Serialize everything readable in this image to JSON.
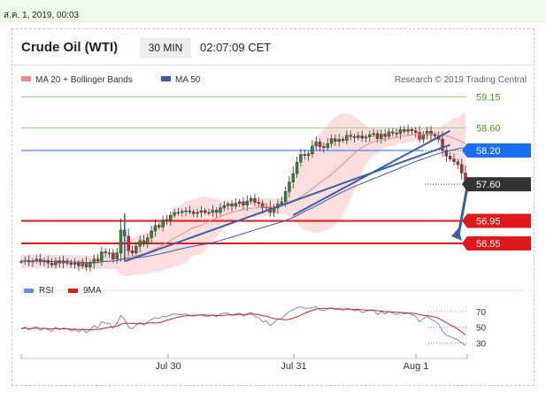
{
  "topbar": {
    "date": "ส.ค. 1, 2019, 00:03"
  },
  "header": {
    "title": "Crude Oil (WTI)",
    "interval": "30 MIN",
    "time": "02:07:09 CET"
  },
  "legend": {
    "ma20": "MA 20 + Bollinger Bands",
    "ma50": "MA 50",
    "credit": "Research © 2019 Trading Central"
  },
  "rsi_legend": {
    "rsi": "RSI",
    "ma9": "9MA"
  },
  "colors": {
    "ma20": "#ef8b8b",
    "band": "#fddede",
    "ma50": "#3d5c99",
    "trend": "#3a5ea6",
    "support": "#e0191c",
    "resistance": "#9fd58a",
    "level_text": "#4b9a1e",
    "current": "#333333",
    "pivot": "#1a6ff5",
    "bull": "#2f8a2f",
    "bear": "#cc2a2a",
    "rsi": "#6a8fd8",
    "rsi_ma": "#d42020"
  },
  "chart_data": [
    {
      "type": "line",
      "chart": "price",
      "x_ticks": [
        "Jul 30",
        "Jul 31",
        "Aug 1"
      ],
      "ylim": [
        56.0,
        59.3
      ],
      "levels": [
        {
          "value": 59.15,
          "label": "59.15",
          "style": "resistance"
        },
        {
          "value": 58.6,
          "label": "58.60",
          "style": "resistance"
        },
        {
          "value": 58.2,
          "label": "58.20",
          "style": "pivot"
        },
        {
          "value": 57.6,
          "label": "57.60",
          "style": "current"
        },
        {
          "value": 56.95,
          "label": "56.95",
          "style": "support"
        },
        {
          "value": 56.55,
          "label": "56.55",
          "style": "support"
        }
      ],
      "series": [
        {
          "name": "MA 20 + Bollinger Bands",
          "close": [
            56.23,
            56.25,
            56.22,
            56.24,
            56.27,
            56.22,
            56.25,
            56.2,
            56.17,
            56.24,
            56.2,
            56.24,
            56.2,
            56.18,
            56.2,
            56.15,
            56.21,
            56.13,
            56.2,
            56.27,
            56.24,
            56.4,
            56.38,
            56.38,
            56.27,
            56.38,
            56.79,
            56.68,
            56.42,
            56.38,
            56.5,
            56.6,
            56.54,
            56.65,
            56.77,
            56.87,
            56.84,
            56.95,
            56.97,
            57.05,
            57.1,
            57.1,
            57.12,
            57.13,
            57.11,
            57.08,
            57.1,
            57.13,
            57.1,
            57.1,
            57.14,
            57.1,
            57.18,
            57.22,
            57.25,
            57.21,
            57.26,
            57.29,
            57.23,
            57.3,
            57.35,
            57.28,
            57.26,
            57.18,
            57.2,
            57.1,
            57.18,
            57.25,
            57.29,
            57.47,
            57.64,
            57.79,
            57.99,
            58.13,
            58.11,
            58.14,
            58.28,
            58.35,
            58.27,
            58.25,
            58.32,
            58.41,
            58.36,
            58.4,
            58.38,
            58.47,
            58.45,
            58.43,
            58.46,
            58.42,
            58.44,
            58.48,
            58.5,
            58.41,
            58.49,
            58.45,
            58.53,
            58.51,
            58.5,
            58.57,
            58.54,
            58.57,
            58.55,
            58.52,
            58.4,
            58.48,
            58.54,
            58.48,
            58.46,
            58.4,
            58.2,
            58.1,
            58.05,
            58.0,
            57.95,
            57.8,
            57.62
          ]
        },
        {
          "name": "MA 50",
          "values": []
        }
      ]
    },
    {
      "type": "line",
      "chart": "rsi",
      "ylim": [
        25,
        80
      ],
      "y_ticks": [
        70,
        50,
        30
      ],
      "series": [
        {
          "name": "RSI",
          "values": [
            48,
            50,
            47,
            49,
            51,
            46,
            49,
            47,
            45,
            50,
            47,
            49,
            48,
            46,
            47,
            44,
            48,
            43,
            47,
            52,
            49,
            57,
            55,
            55,
            49,
            55,
            65,
            60,
            50,
            48,
            53,
            56,
            53,
            57,
            60,
            62,
            61,
            64,
            63,
            66,
            67,
            66,
            66,
            67,
            65,
            64,
            65,
            66,
            64,
            64,
            66,
            63,
            67,
            68,
            68,
            65,
            67,
            68,
            64,
            67,
            69,
            64,
            62,
            57,
            58,
            52,
            56,
            60,
            61,
            66,
            70,
            72,
            75,
            76,
            74,
            74,
            75,
            76,
            72,
            71,
            73,
            75,
            72,
            73,
            71,
            74,
            73,
            71,
            72,
            69,
            70,
            72,
            72,
            66,
            70,
            67,
            70,
            68,
            66,
            69,
            67,
            68,
            66,
            64,
            57,
            61,
            64,
            60,
            58,
            54,
            45,
            40,
            38,
            36,
            34,
            30,
            27
          ]
        },
        {
          "name": "9MA",
          "values": []
        }
      ]
    }
  ]
}
